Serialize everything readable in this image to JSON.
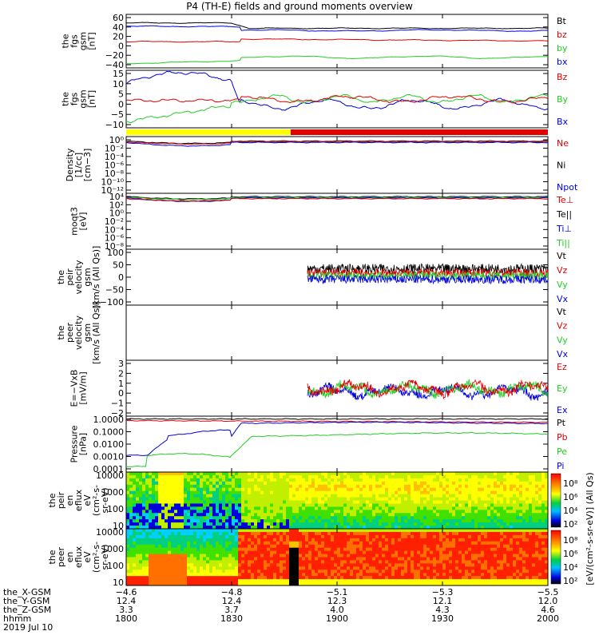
{
  "title": "P4 (TH-E) fields and ground moments overview",
  "date_label": "2019 Jul 10",
  "colors": {
    "black": "#000000",
    "red": "#e00000",
    "green": "#22cc22",
    "blue": "#0000dd",
    "yellow": "#ffff00"
  },
  "chart_data": [
    {
      "type": "line",
      "ylabel": [
        "the",
        "fgs",
        "gsm",
        "[nT]"
      ],
      "yticks": [
        "60",
        "40",
        "20",
        "0",
        "−20",
        "−40"
      ],
      "ylim": [
        -40,
        60
      ],
      "legend": [
        {
          "name": "Bt",
          "color": "black"
        },
        {
          "name": "bz",
          "color": "red"
        },
        {
          "name": "by",
          "color": "green"
        },
        {
          "name": "bx",
          "color": "blue"
        }
      ],
      "series": [
        {
          "name": "Bt",
          "values_start": 44,
          "values_end": 34
        },
        {
          "name": "bz",
          "values_start": 14,
          "values_end": 10
        },
        {
          "name": "by",
          "values_start": -32,
          "values_end": -18
        },
        {
          "name": "bx",
          "values_start": 38,
          "values_end": 28
        }
      ]
    },
    {
      "type": "line",
      "ylabel": [
        "the",
        "fgs",
        "gsm",
        "[nT]"
      ],
      "yticks": [
        "15",
        "10",
        "5",
        "0",
        "−5",
        "−10"
      ],
      "ylim": [
        -12,
        15
      ],
      "legend": [
        {
          "name": "Bz",
          "color": "red"
        },
        {
          "name": "By",
          "color": "green"
        },
        {
          "name": "Bx",
          "color": "blue"
        }
      ]
    },
    {
      "type": "line",
      "ylabel": [
        "Density",
        "[1/cc]",
        "[cm−3]"
      ],
      "yticks": [
        "10⁰",
        "10⁻²",
        "10⁻⁴",
        "10⁻⁶",
        "10⁻⁸",
        "10⁻¹⁰",
        "10⁻¹²"
      ],
      "legend": [
        {
          "name": "Ne",
          "color": "red"
        },
        {
          "name": "Ni",
          "color": "black"
        },
        {
          "name": "Npot",
          "color": "blue"
        }
      ]
    },
    {
      "type": "line",
      "ylabel": [
        "moqt3",
        "[eV]"
      ],
      "yticks": [
        "10⁴",
        "10²",
        "10⁰",
        "10⁻²",
        "10⁻⁴",
        "10⁻⁶",
        "10⁻⁸"
      ],
      "legend": [
        {
          "name": "Te⊥",
          "color": "red"
        },
        {
          "name": "Te||",
          "color": "black"
        },
        {
          "name": "Ti⊥",
          "color": "blue"
        },
        {
          "name": "Ti||",
          "color": "green"
        }
      ]
    },
    {
      "type": "line",
      "ylabel": [
        "the",
        "peir",
        "velocity",
        "gsm",
        "[km/s (All Qs)]"
      ],
      "yticks": [
        "100",
        "50",
        "0",
        "−50",
        "−100"
      ],
      "ylim": [
        -100,
        100
      ],
      "legend": [
        {
          "name": "Vt",
          "color": "black"
        },
        {
          "name": "Vz",
          "color": "red"
        },
        {
          "name": "Vy",
          "color": "green"
        },
        {
          "name": "Vx",
          "color": "blue"
        }
      ]
    },
    {
      "type": "line",
      "ylabel": [
        "the",
        "peer",
        "velocity",
        "gsm",
        "[km/s (All Qs)]"
      ],
      "yticks": [],
      "legend": [
        {
          "name": "Vt",
          "color": "black"
        },
        {
          "name": "Vz",
          "color": "red"
        },
        {
          "name": "Vy",
          "color": "green"
        },
        {
          "name": "Vx",
          "color": "blue"
        }
      ]
    },
    {
      "type": "line",
      "ylabel": [
        "E=−VxB",
        "[mV/m]"
      ],
      "yticks": [
        "3",
        "2",
        "1",
        "0",
        "−1",
        "−2"
      ],
      "ylim": [
        -2,
        3
      ],
      "legend": [
        {
          "name": "Ez",
          "color": "red"
        },
        {
          "name": "Ey",
          "color": "green"
        },
        {
          "name": "Ex",
          "color": "blue"
        }
      ]
    },
    {
      "type": "line",
      "ylabel": [
        "Pressure",
        "[nPa]"
      ],
      "yticks": [
        "1.0000",
        "0.1000",
        "0.0100",
        "0.0010",
        "0.0001"
      ],
      "legend": [
        {
          "name": "Pt",
          "color": "black"
        },
        {
          "name": "Pb",
          "color": "red"
        },
        {
          "name": "Pe",
          "color": "green"
        },
        {
          "name": "Pi",
          "color": "blue"
        }
      ]
    },
    {
      "type": "heatmap",
      "ylabel": [
        "the",
        "peir",
        "en",
        "eflux",
        "eV",
        "(cm²-s-",
        "sr-eV)"
      ],
      "yticks": [
        "10000",
        "1000",
        "100",
        "10"
      ]
    },
    {
      "type": "heatmap",
      "ylabel": [
        "the",
        "peer",
        "en",
        "eflux",
        "eV",
        "(cm²-s-",
        "sr-eV)"
      ],
      "yticks": [
        "10000",
        "1000",
        "100",
        "10"
      ]
    }
  ],
  "colorbar": {
    "label": "[eV/(cm²-s-sr-eV)] (All Qs)",
    "top_ticks": [
      "10⁸",
      "10⁶",
      "10⁴",
      "10²"
    ],
    "bottom_ticks": [
      "10⁸",
      "10⁶",
      "10⁴",
      "10²"
    ]
  },
  "footer": {
    "rows": [
      {
        "label": "the_X-GSM",
        "values": [
          "−4.6",
          "−4.8",
          "−5.1",
          "−5.3",
          "−5.5"
        ]
      },
      {
        "label": "the_Y-GSM",
        "values": [
          "12.4",
          "12.4",
          "12.3",
          "12.1",
          "12.0"
        ]
      },
      {
        "label": "the_Z-GSM",
        "values": [
          "3.3",
          "3.7",
          "4.0",
          "4.3",
          "4.6"
        ]
      },
      {
        "label": "hhmm",
        "values": [
          "1800",
          "1830",
          "1900",
          "1930",
          "2000"
        ]
      }
    ]
  }
}
